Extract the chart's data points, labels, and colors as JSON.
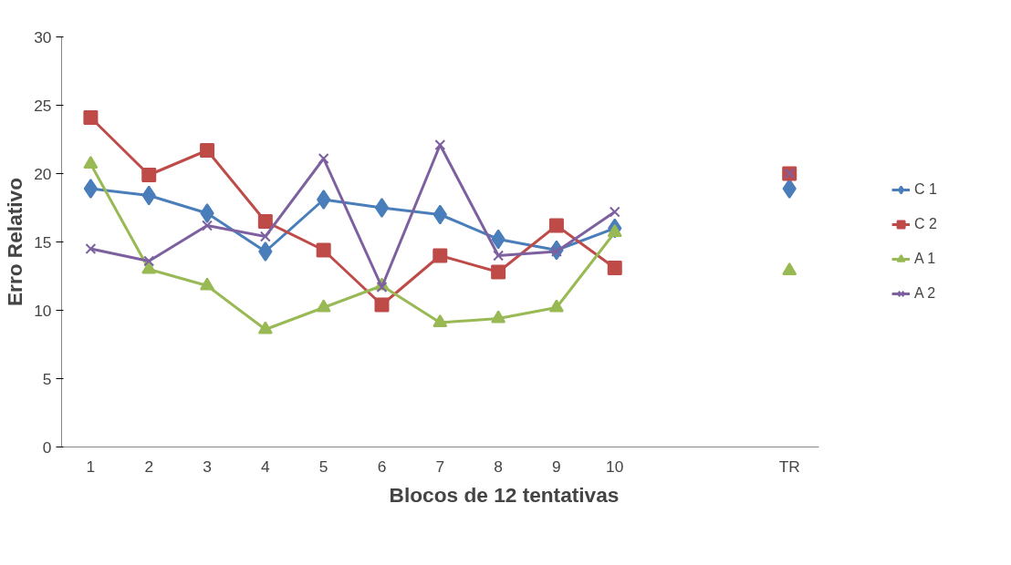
{
  "chart_data": {
    "type": "line",
    "xlabel": "Blocos de 12 tentativas",
    "ylabel": "Erro Relativo",
    "categories": [
      "1",
      "2",
      "3",
      "4",
      "5",
      "6",
      "7",
      "8",
      "9",
      "10",
      null,
      null,
      "TR"
    ],
    "ylim": [
      0,
      30
    ],
    "yticks": [
      0,
      5,
      10,
      15,
      20,
      25,
      30
    ],
    "grid": false,
    "legend": "right",
    "series": [
      {
        "name": "C 1",
        "color": "#4a7ebb",
        "marker": "diamond",
        "values": [
          18.9,
          18.4,
          17.1,
          14.3,
          18.1,
          17.5,
          17.0,
          15.2,
          14.4,
          16.0,
          null,
          null,
          18.9
        ]
      },
      {
        "name": "C 2",
        "color": "#be4b48",
        "marker": "square",
        "values": [
          24.1,
          19.9,
          21.7,
          16.5,
          14.4,
          10.4,
          14.0,
          12.8,
          16.2,
          13.1,
          null,
          null,
          20.0
        ]
      },
      {
        "name": "A 1",
        "color": "#98b954",
        "marker": "triangle",
        "values": [
          20.7,
          13.0,
          11.8,
          8.6,
          10.2,
          11.8,
          9.1,
          9.4,
          10.2,
          15.7,
          null,
          null,
          12.9
        ]
      },
      {
        "name": "A 2",
        "color": "#7d60a0",
        "marker": "cross",
        "values": [
          14.5,
          13.6,
          16.2,
          15.4,
          21.1,
          11.7,
          22.1,
          14.0,
          14.3,
          17.2,
          null,
          null,
          20.0
        ]
      }
    ]
  }
}
